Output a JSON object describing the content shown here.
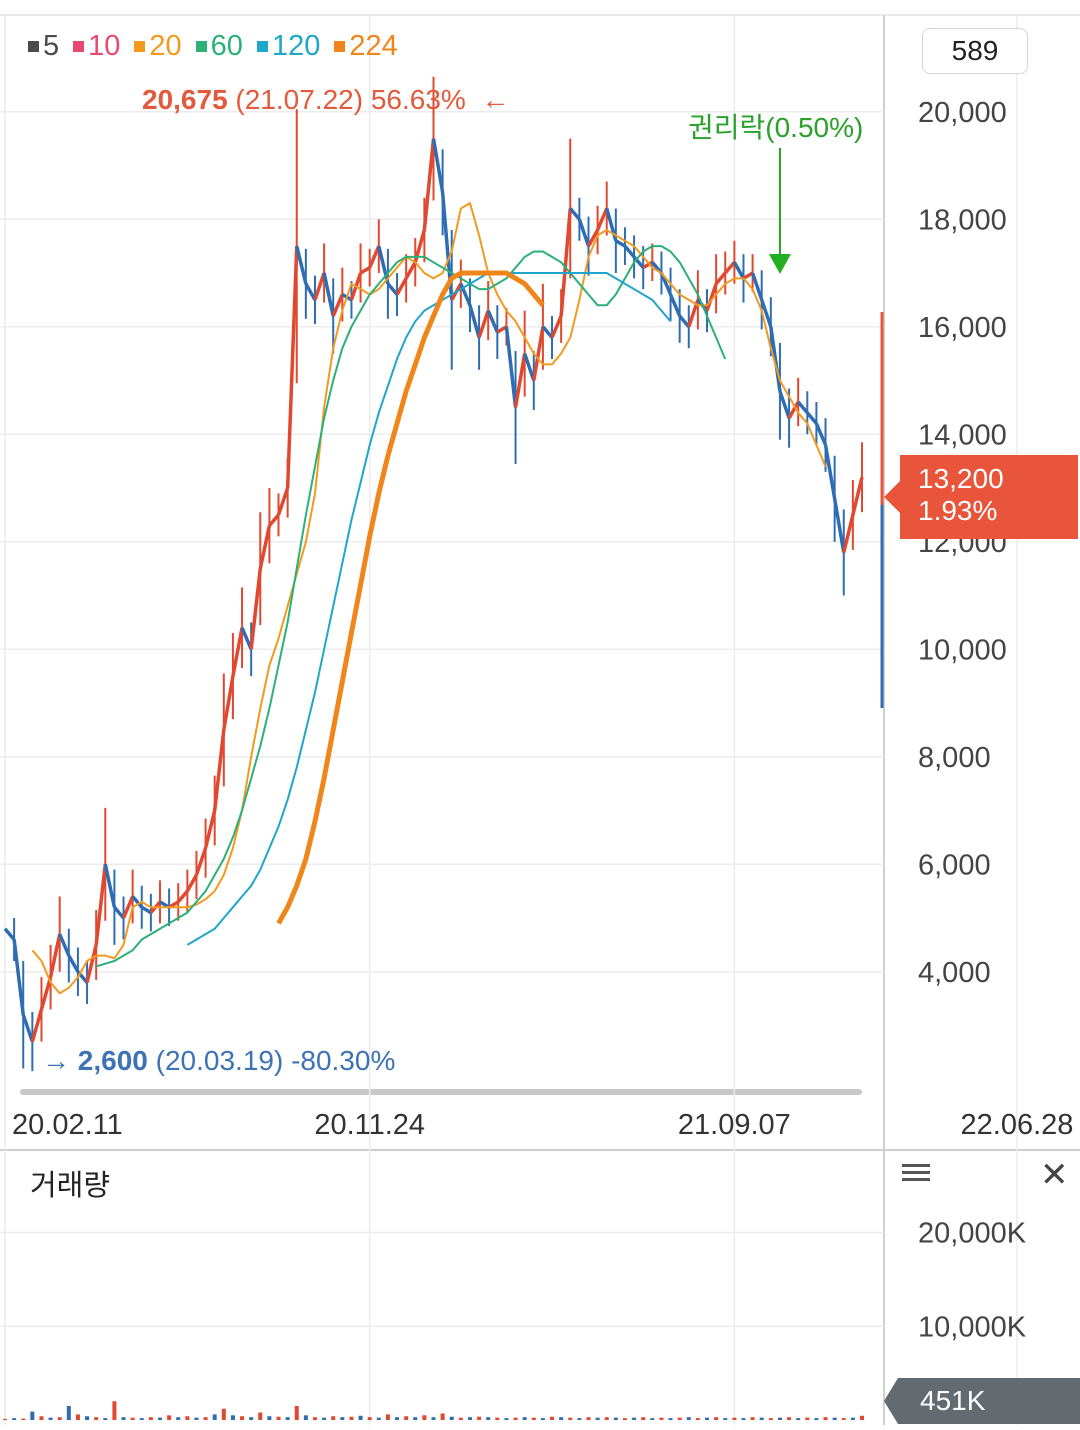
{
  "legend": [
    {
      "label": "5",
      "color": "#4a4a4a"
    },
    {
      "label": "10",
      "color": "#e84a6f"
    },
    {
      "label": "20",
      "color": "#f39a1e"
    },
    {
      "label": "60",
      "color": "#2bb07a"
    },
    {
      "label": "120",
      "color": "#1fa6c9"
    },
    {
      "label": "224",
      "color": "#f0861a"
    }
  ],
  "high_marker": {
    "price": "20,675",
    "date": "(21.07.22)",
    "pct": "56.63%",
    "arrow": "←"
  },
  "low_marker": {
    "arrow": "→",
    "price": "2,600",
    "date": "(20.03.19)",
    "pct": "-80.30%"
  },
  "event_marker": {
    "label": "권리락(0.50%)"
  },
  "top_right_box": "589",
  "current_price": {
    "price": "13,200",
    "change": "1.93%"
  },
  "volume_panel": {
    "title": "거래량",
    "current": "451K",
    "tick_labels": [
      "20,000K",
      "10,000K"
    ]
  },
  "chart_data": {
    "type": "candlestick",
    "y_tick_labels": [
      "20,000",
      "18,000",
      "16,000",
      "14,000",
      "12,000",
      "10,000",
      "8,000",
      "6,000",
      "4,000"
    ],
    "y_ticks": [
      20000,
      18000,
      16000,
      14000,
      12000,
      10000,
      8000,
      6000,
      4000
    ],
    "ylim": [
      1800,
      21800
    ],
    "x_tick_labels": [
      "20.02.11",
      "20.11.24",
      "21.09.07",
      "22.06.28"
    ],
    "x_tick_index": [
      0,
      40,
      80,
      111
    ],
    "close_series": [
      4800,
      4600,
      3200,
      2700,
      3300,
      3900,
      4700,
      4300,
      4000,
      3800,
      4500,
      6000,
      5200,
      5000,
      5400,
      5200,
      5100,
      5300,
      5200,
      5300,
      5500,
      5800,
      6300,
      7000,
      8500,
      9500,
      10400,
      10000,
      11500,
      12300,
      12500,
      13000,
      17500,
      16800,
      16500,
      17000,
      16200,
      16600,
      16500,
      17000,
      17100,
      17500,
      16800,
      16600,
      16900,
      17200,
      17800,
      19500,
      18500,
      16500,
      16800,
      16400,
      15800,
      16300,
      15900,
      16000,
      14500,
      15500,
      15000,
      16000,
      15800,
      16200,
      18200,
      18000,
      17500,
      17800,
      18200,
      17600,
      17500,
      17300,
      17100,
      17200,
      17000,
      16600,
      16200,
      16000,
      16500,
      16300,
      16800,
      17000,
      17200,
      16900,
      17000,
      16500,
      16000,
      14800,
      14300,
      14600,
      14400,
      14200,
      13800,
      12800,
      11800,
      12500,
      13200
    ],
    "ma_series": [
      {
        "name": "20",
        "color": "#f39a1e",
        "start_index": 3,
        "values": [
          4400,
          4200,
          3800,
          3600,
          3700,
          3900,
          4200,
          4300,
          4300,
          4250,
          4500,
          5200,
          5300,
          5200,
          5200,
          5200,
          5200,
          5200,
          5250,
          5350,
          5500,
          5800,
          6300,
          7000,
          8000,
          8900,
          9700,
          10200,
          10800,
          11400,
          12000,
          12900,
          14500,
          15600,
          16300,
          16800,
          16700,
          16600,
          16700,
          16900,
          17100,
          17300,
          17200,
          17000,
          16900,
          17000,
          17400,
          18200,
          18300,
          17700,
          17000,
          16600,
          16300,
          16100,
          15800,
          15500,
          15300,
          15300,
          15500,
          15800,
          16500,
          17300,
          17700,
          17800,
          17700,
          17600,
          17500,
          17300,
          17100,
          17000,
          16800,
          16600,
          16500,
          16400,
          16400,
          16600,
          16800,
          16900,
          16900,
          16700,
          16300,
          15600,
          15000,
          14700,
          14400,
          14200,
          13800,
          13400
        ]
      },
      {
        "name": "60",
        "color": "#2bb07a",
        "start_index": 10,
        "values": [
          4100,
          4150,
          4200,
          4300,
          4400,
          4600,
          4700,
          4800,
          4900,
          5000,
          5100,
          5300,
          5500,
          5800,
          6100,
          6500,
          7000,
          7600,
          8200,
          8900,
          9700,
          10500,
          11500,
          12500,
          13400,
          14300,
          15000,
          15600,
          16000,
          16300,
          16600,
          16800,
          17000,
          17200,
          17300,
          17300,
          17300,
          17200,
          17100,
          17000,
          16900,
          16800,
          16700,
          16700,
          16800,
          16900,
          17100,
          17300,
          17400,
          17400,
          17300,
          17200,
          17000,
          16800,
          16600,
          16400,
          16400,
          16600,
          16900,
          17200,
          17400,
          17500,
          17500,
          17400,
          17200,
          16900,
          16600,
          16200,
          15800,
          15400
        ]
      },
      {
        "name": "120",
        "color": "#1fa6c9",
        "start_index": 20,
        "values": [
          4500,
          4600,
          4700,
          4800,
          5000,
          5200,
          5400,
          5600,
          5900,
          6300,
          6700,
          7200,
          7800,
          8500,
          9200,
          10000,
          10800,
          11600,
          12400,
          13100,
          13800,
          14400,
          14900,
          15400,
          15800,
          16100,
          16300,
          16400,
          16500,
          16600,
          16700,
          16800,
          16900,
          17000,
          17000,
          17000,
          17000,
          17000,
          17000,
          17000,
          17000,
          17000,
          17000,
          17000,
          17000,
          17000,
          17000,
          16900,
          16800,
          16700,
          16600,
          16500,
          16300,
          16100
        ]
      },
      {
        "name": "224",
        "color": "#f0861a",
        "start_index": 30,
        "values": [
          4900,
          5200,
          5600,
          6100,
          6800,
          7600,
          8500,
          9400,
          10300,
          11200,
          12100,
          12900,
          13600,
          14200,
          14800,
          15300,
          15800,
          16200,
          16600,
          16900,
          17000,
          17000,
          17000,
          17000,
          17000,
          17000,
          16900,
          16800,
          16600,
          16400
        ]
      }
    ],
    "volume": {
      "ylim": [
        0,
        24000
      ],
      "unit": "K",
      "values": [
        120,
        200,
        150,
        900,
        400,
        250,
        300,
        1500,
        600,
        400,
        300,
        200,
        2000,
        300,
        250,
        200,
        300,
        250,
        500,
        300,
        400,
        250,
        300,
        600,
        1200,
        500,
        400,
        300,
        800,
        400,
        350,
        300,
        1500,
        500,
        300,
        250,
        400,
        300,
        350,
        450,
        300,
        250,
        600,
        300,
        400,
        300,
        500,
        300,
        700,
        350,
        250,
        300,
        350,
        300,
        250,
        200,
        250,
        300,
        250,
        200,
        350,
        300,
        250,
        200,
        300,
        250,
        300,
        250,
        200,
        250,
        300,
        200,
        250,
        200,
        250,
        300,
        200,
        250,
        300,
        200,
        250,
        200,
        300,
        250,
        200,
        250,
        300,
        200,
        250,
        200,
        300,
        250,
        200,
        250,
        451
      ]
    }
  }
}
